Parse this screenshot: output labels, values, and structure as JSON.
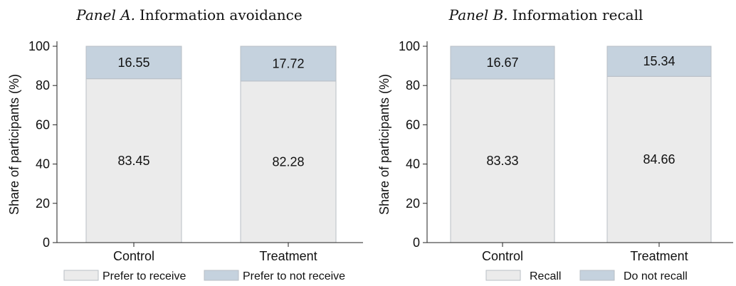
{
  "chart_data": [
    {
      "type": "bar",
      "stacked": true,
      "title_prefix": "Panel A.",
      "title": "Information avoidance",
      "ylabel": "Share of participants (%)",
      "xlabel": "",
      "ylim": [
        0,
        100
      ],
      "yticks": [
        0,
        20,
        40,
        60,
        80,
        100
      ],
      "categories": [
        "Control",
        "Treatment"
      ],
      "series": [
        {
          "name": "Prefer to receive",
          "values": [
            83.45,
            82.28
          ],
          "color": "#ebebeb",
          "labels": [
            "83.45",
            "82.28"
          ]
        },
        {
          "name": "Prefer to not receive",
          "values": [
            16.55,
            17.72
          ],
          "color": "#c5d2de",
          "labels": [
            "16.55",
            "17.72"
          ]
        }
      ],
      "grid": false,
      "legend_placement": "bottom"
    },
    {
      "type": "bar",
      "stacked": true,
      "title_prefix": "Panel B.",
      "title": "Information recall",
      "ylabel": "Share of participants (%)",
      "xlabel": "",
      "ylim": [
        0,
        100
      ],
      "yticks": [
        0,
        20,
        40,
        60,
        80,
        100
      ],
      "categories": [
        "Control",
        "Treatment"
      ],
      "series": [
        {
          "name": "Recall",
          "values": [
            83.33,
            84.66
          ],
          "color": "#ebebeb",
          "labels": [
            "83.33",
            "84.66"
          ]
        },
        {
          "name": "Do not recall",
          "values": [
            16.67,
            15.34
          ],
          "color": "#c5d2de",
          "labels": [
            "16.67",
            "15.34"
          ]
        }
      ],
      "grid": false,
      "legend_placement": "bottom"
    }
  ]
}
